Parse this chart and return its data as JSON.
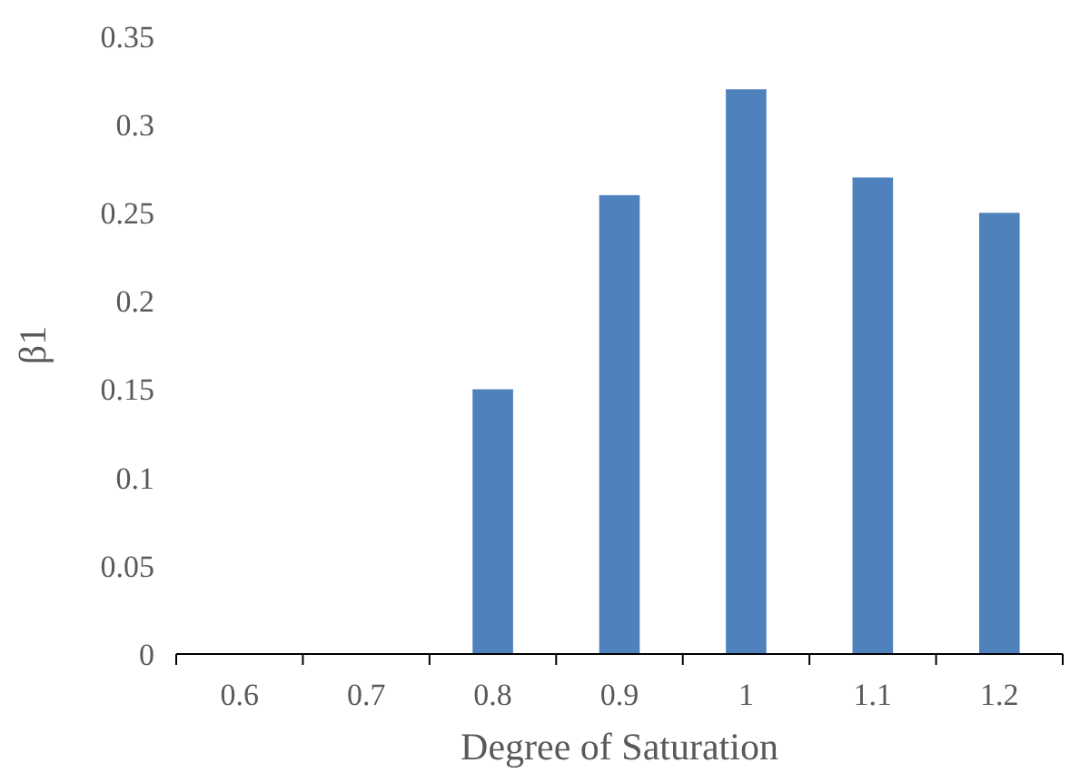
{
  "chart_data": {
    "type": "bar",
    "xlabel": "Degree of Saturation",
    "ylabel": "β1",
    "categories": [
      "0.6",
      "0.7",
      "0.8",
      "0.9",
      "1",
      "1.1",
      "1.2"
    ],
    "values": [
      0,
      0,
      0.15,
      0.26,
      0.32,
      0.27,
      0.25
    ],
    "color": "#4f81bd",
    "ylim": [
      0,
      0.35
    ],
    "yticks": [
      0,
      0.05,
      0.1,
      0.15,
      0.2,
      0.25,
      0.3,
      0.35
    ],
    "grid": false
  }
}
